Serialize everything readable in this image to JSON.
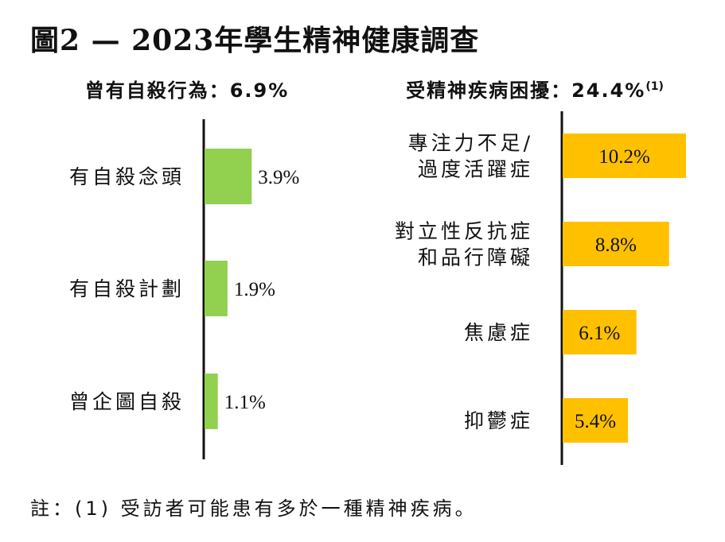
{
  "title": "圖2 — 2023年學生精神健康調查",
  "footnote": "註：(1)  受訪者可能患有多於一種精神疾病。",
  "colors": {
    "left_bar": "#92d050",
    "right_bar": "#ffc000",
    "axis": "#111111"
  },
  "chart_data": [
    {
      "type": "bar",
      "orientation": "horizontal",
      "title": "曾有自殺行為：6.9%",
      "categories": [
        "有自殺念頭",
        "有自殺計劃",
        "曾企圖自殺"
      ],
      "values": [
        3.9,
        1.9,
        1.1
      ],
      "value_labels": [
        "3.9%",
        "1.9%",
        "1.1%"
      ],
      "label_position": "outside-end",
      "color": "#92d050",
      "xlim": [
        0,
        10.2
      ]
    },
    {
      "type": "bar",
      "orientation": "horizontal",
      "title": "受精神疾病困擾：24.4%",
      "title_superscript": "(1)",
      "categories": [
        [
          "專注力不足/",
          "過度活躍症"
        ],
        [
          "對立性反抗症",
          "和品行障礙"
        ],
        [
          "焦慮症"
        ],
        [
          "抑鬱症"
        ]
      ],
      "values": [
        10.2,
        8.8,
        6.1,
        5.4
      ],
      "value_labels": [
        "10.2%",
        "8.8%",
        "6.1%",
        "5.4%"
      ],
      "label_position": "inside",
      "color": "#ffc000",
      "xlim": [
        0,
        10.2
      ]
    }
  ]
}
